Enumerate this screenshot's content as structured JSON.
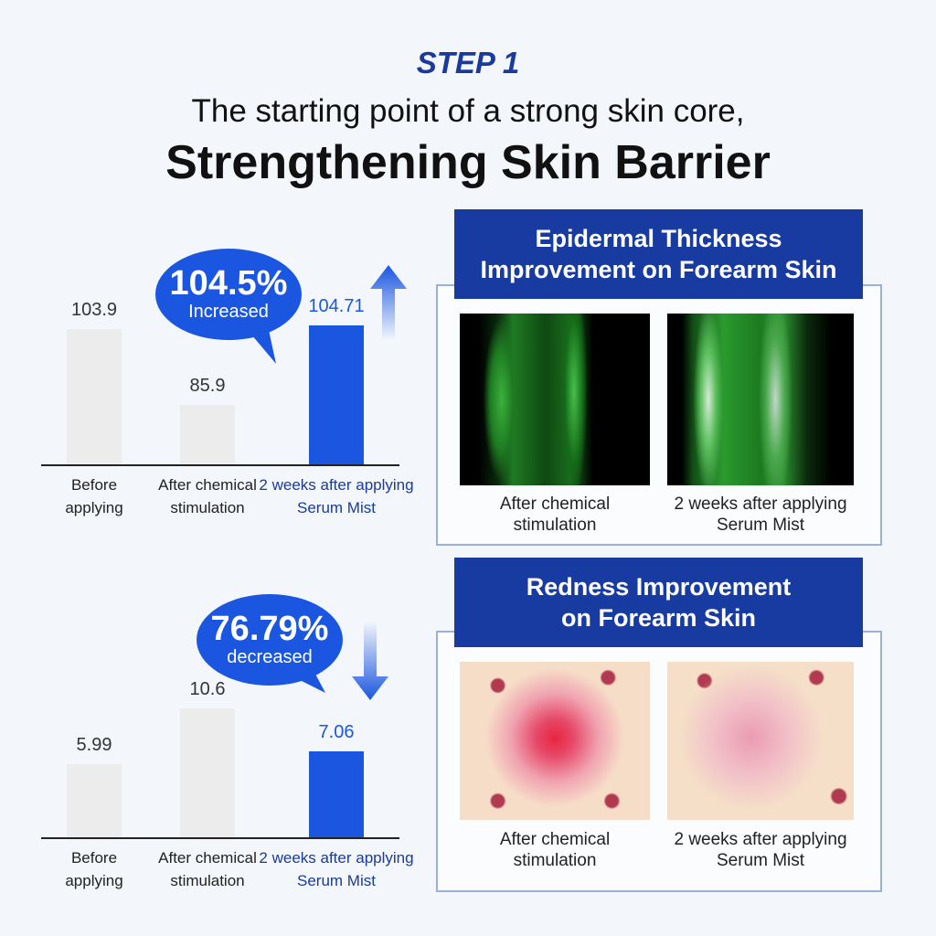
{
  "header": {
    "step": "STEP 1",
    "subtitle": "The starting point of a strong skin core,",
    "title": "Strengthening Skin Barrier"
  },
  "chart_data": [
    {
      "type": "bar",
      "categories": [
        "Before applying",
        "After chemical stimulation",
        "2 weeks after applying Serum Mist"
      ],
      "values": [
        103.9,
        85.9,
        104.71
      ],
      "colors": [
        "#ececec",
        "#ececec",
        "#1a56e0"
      ],
      "ylim": [
        72,
        115
      ],
      "callout": "104.5%",
      "callout_note": "Increased",
      "trend": "up"
    },
    {
      "type": "bar",
      "categories": [
        "Before applying",
        "After chemical stimulation",
        "2 weeks after applying Serum Mist"
      ],
      "values": [
        5.99,
        10.6,
        7.06
      ],
      "colors": [
        "#ececec",
        "#ececec",
        "#1a56e0"
      ],
      "ylim": [
        0,
        15
      ],
      "callout": "76.79%",
      "callout_note": "decreased",
      "trend": "down"
    }
  ],
  "panels": [
    {
      "title": "Epidermal Thickness Improvement on Forearm Skin",
      "captions": [
        "After chemical stimulation",
        "2 weeks after applying Serum Mist"
      ]
    },
    {
      "title": "Redness Improvement on Forearm Skin",
      "captions": [
        "After chemical stimulation",
        "2 weeks after applying Serum Mist"
      ]
    }
  ]
}
